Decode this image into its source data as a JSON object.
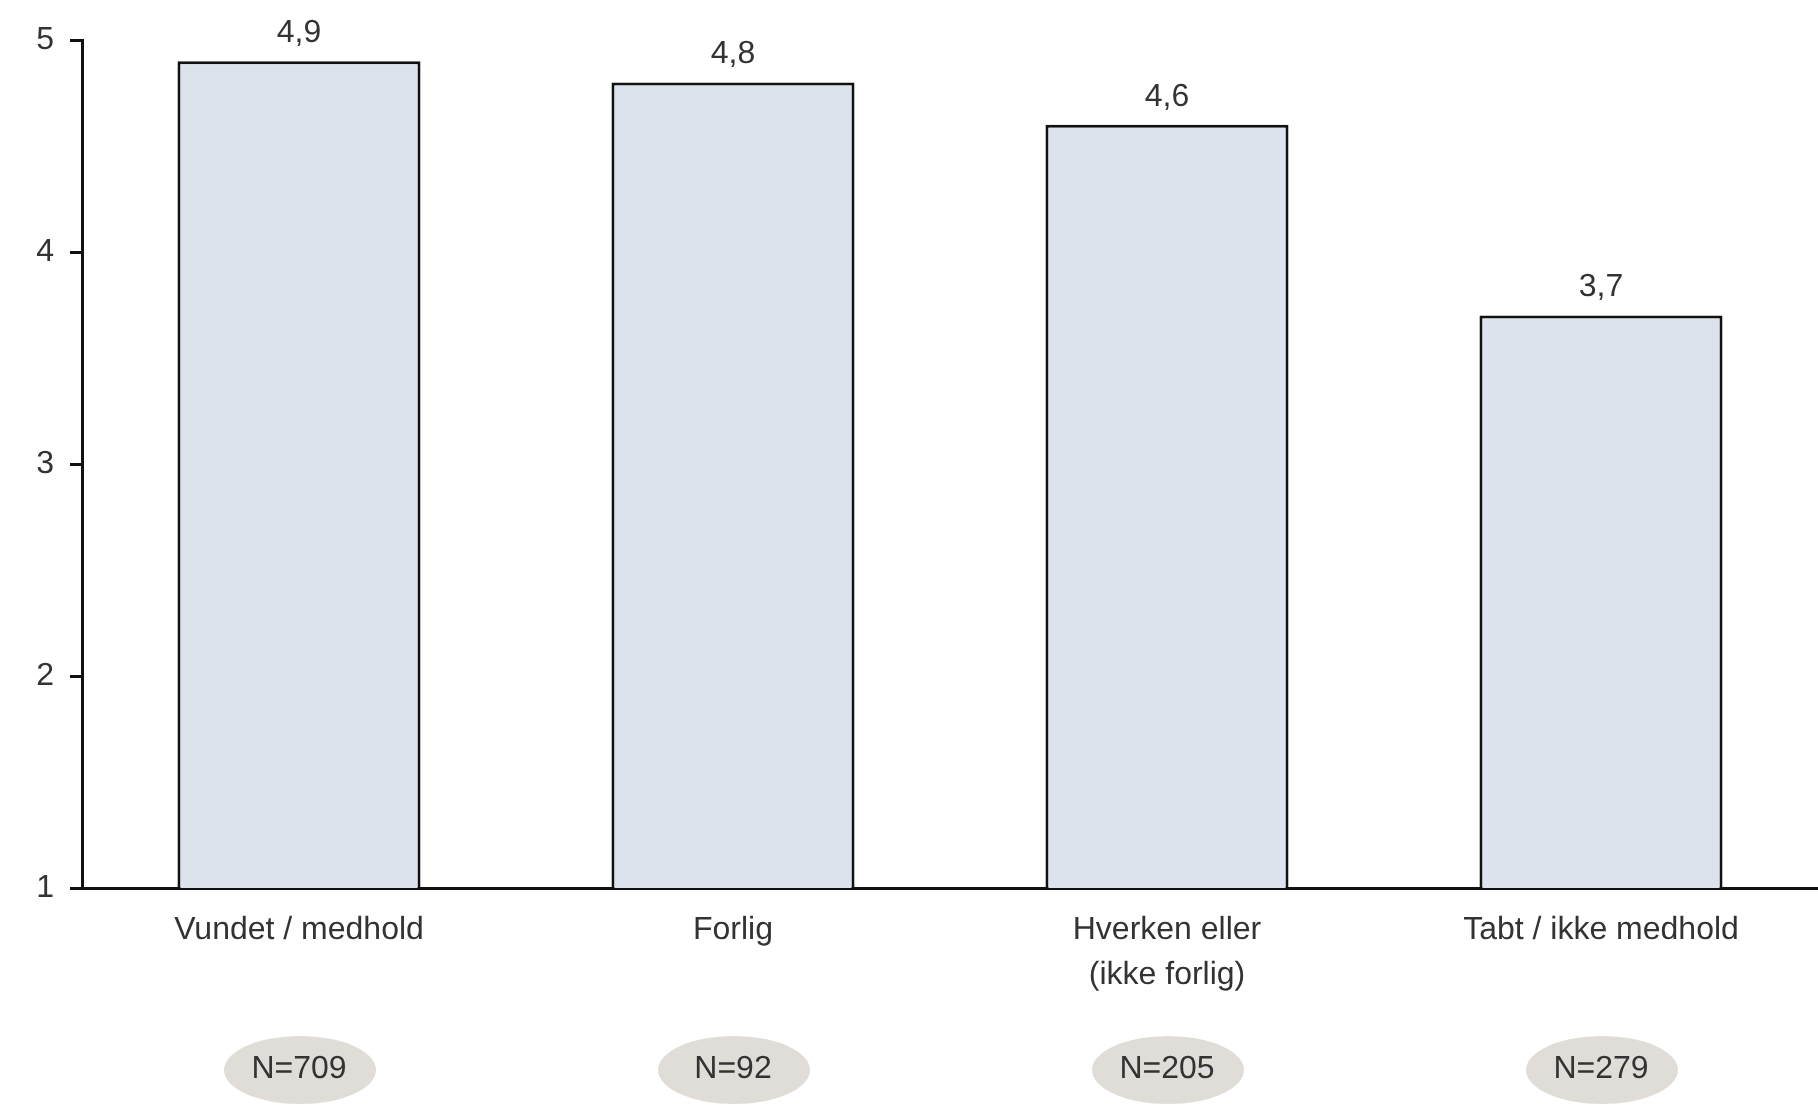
{
  "chart_data": {
    "type": "bar",
    "categories": [
      "Vundet / medhold",
      "Forlig",
      "Hverken eller\n(ikke forlig)",
      "Tabt / ikke medhold"
    ],
    "values": [
      4.9,
      4.8,
      4.6,
      3.7
    ],
    "value_labels": [
      "4,9",
      "4,8",
      "4,6",
      "3,7"
    ],
    "color": "#dde3ed",
    "ylim": [
      1,
      5
    ],
    "yticks": [
      1,
      2,
      3,
      4,
      5
    ],
    "annotations": [
      "N=709",
      "N=92",
      "N=205",
      "N=279"
    ]
  }
}
